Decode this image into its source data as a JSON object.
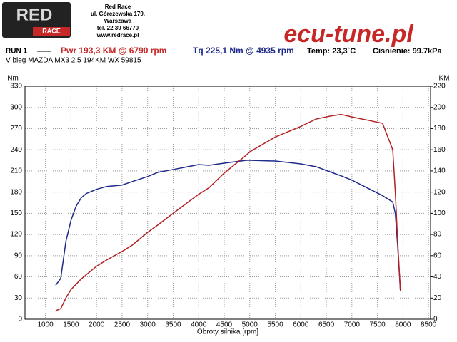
{
  "header": {
    "logo_red": "RED",
    "logo_race": "RACE",
    "company": "Red Race",
    "address": [
      "ul. Górczewska 179,",
      "Warszawa",
      "tel. 22 39 66770",
      "www.redrace.pl"
    ],
    "brand": "ecu-tune.pl"
  },
  "chart_data": {
    "type": "line",
    "run": "RUN 1",
    "power_summary": "Pwr  193,3 KM @ 6790 rpm",
    "torque_summary": "Tq 225,1 Nm @ 4935 rpm",
    "temperature": "Temp: 23,3`C",
    "pressure": "Cisnienie: 99.7kPa",
    "subtitle": "V bieg MAZDA MX3 2.5 194KM WX 59815",
    "x_label": "Obroty silnika [rpm]",
    "y_label": "Nm",
    "y2_label": "KM",
    "grid": true,
    "x": [
      1200,
      1300,
      1400,
      1500,
      1600,
      1700,
      1800,
      2000,
      2200,
      2500,
      2700,
      3000,
      3200,
      3500,
      4000,
      4200,
      4500,
      4935,
      5000,
      5500,
      6000,
      6300,
      6600,
      6790,
      7000,
      7300,
      7600,
      7800,
      7850,
      7900,
      7950
    ],
    "series": [
      {
        "name": "Tq",
        "color": "#1f2a8a",
        "axis": "y",
        "values": [
          48,
          58,
          110,
          140,
          160,
          172,
          178,
          184,
          188,
          190,
          195,
          202,
          208,
          212,
          219,
          218,
          221,
          225.1,
          225,
          224,
          220,
          216,
          208,
          203,
          197,
          186,
          175,
          166,
          150,
          100,
          40
        ]
      },
      {
        "name": "Pwr",
        "color": "#b22222",
        "axis": "y2",
        "values": [
          8,
          10,
          20,
          28,
          33,
          38,
          42,
          50,
          56,
          64,
          70,
          82,
          89,
          100,
          118,
          124,
          138,
          155,
          158,
          172,
          182,
          189,
          192,
          193.3,
          191,
          188,
          185,
          160,
          120,
          70,
          27
        ]
      }
    ],
    "xlim": [
      600,
      8540
    ],
    "xticks": [
      1000,
      1500,
      2000,
      2500,
      3000,
      3500,
      4000,
      4500,
      5000,
      5500,
      6000,
      6500,
      7000,
      7500,
      8000,
      8500
    ],
    "ylim": [
      0,
      330
    ],
    "yticks": [
      0,
      30,
      60,
      90,
      120,
      150,
      180,
      210,
      240,
      270,
      300,
      330
    ],
    "y2lim": [
      0,
      220
    ],
    "y2ticks": [
      0,
      20,
      40,
      60,
      80,
      100,
      120,
      140,
      160,
      180,
      200,
      220
    ]
  }
}
